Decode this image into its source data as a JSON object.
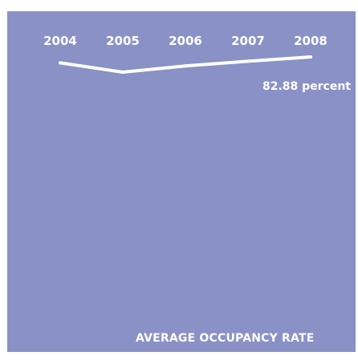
{
  "colors": {
    "background": "#8a91c6",
    "foreground": "#ffffff"
  },
  "chart_data": {
    "type": "line",
    "title": "AVERAGE OCCUPANCY RATE",
    "x": [
      "2004",
      "2005",
      "2006",
      "2007",
      "2008"
    ],
    "series": [
      {
        "values": [
          82.5,
          81.9,
          82.3,
          82.6,
          82.88
        ]
      }
    ],
    "data_labels": [
      "82.88 percent"
    ],
    "ylabel": "",
    "xlabel": "",
    "grid": false,
    "legend": "none"
  }
}
